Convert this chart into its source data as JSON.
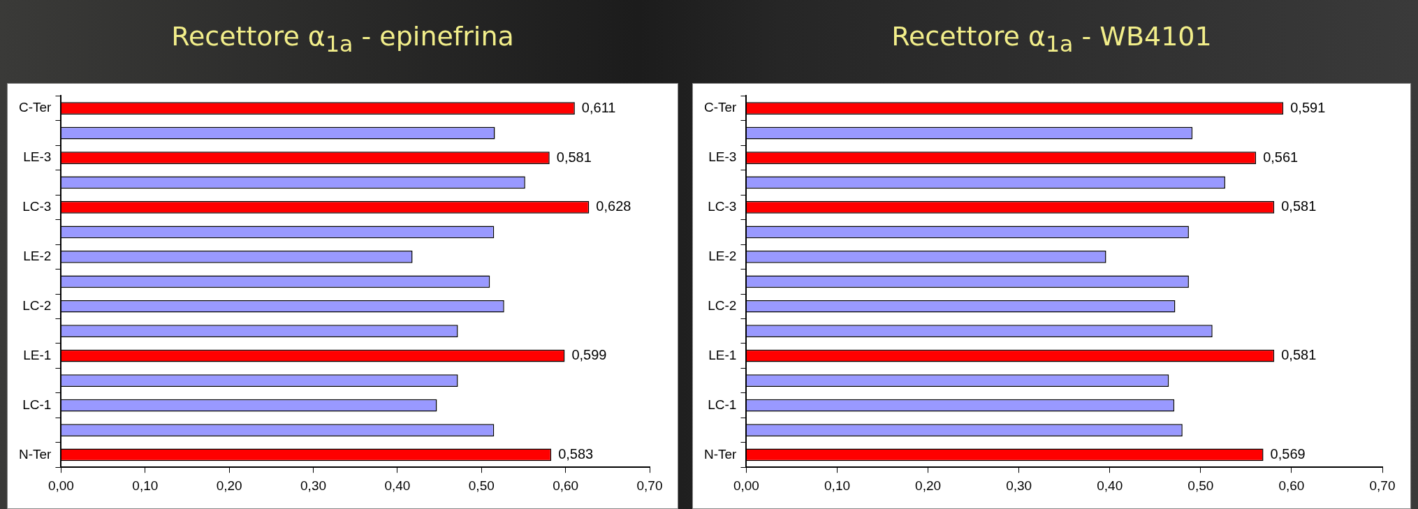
{
  "chart_data": [
    {
      "type": "bar",
      "orientation": "horizontal",
      "title": "Recettore α$_{1a}$ - epinefrina",
      "categories": [
        "C-Ter",
        null,
        "LE-3",
        null,
        "LC-3",
        null,
        "LE-2",
        null,
        "LC-2",
        null,
        "LE-1",
        null,
        "LC-1",
        null,
        "N-Ter"
      ],
      "values": [
        0.611,
        0.516,
        0.581,
        0.552,
        0.628,
        0.515,
        0.418,
        0.51,
        0.527,
        0.472,
        0.599,
        0.472,
        0.447,
        0.515,
        0.583
      ],
      "colors": [
        "#ff0000",
        "#9999ff",
        "#ff0000",
        "#9999ff",
        "#ff0000",
        "#9999ff",
        "#9999ff",
        "#9999ff",
        "#9999ff",
        "#9999ff",
        "#ff0000",
        "#9999ff",
        "#9999ff",
        "#9999ff",
        "#ff0000"
      ],
      "value_labels": [
        "0,611",
        null,
        "0,581",
        null,
        "0,628",
        null,
        null,
        null,
        null,
        null,
        "0,599",
        null,
        null,
        null,
        "0,583"
      ],
      "xlim": [
        0,
        0.7
      ],
      "xticks": [
        {
          "value": 0,
          "label": "0,00"
        },
        {
          "value": 0.1,
          "label": "0,10"
        },
        {
          "value": 0.2,
          "label": "0,20"
        },
        {
          "value": 0.3,
          "label": "0,30"
        },
        {
          "value": 0.4,
          "label": "0,40"
        },
        {
          "value": 0.5,
          "label": "0,50"
        },
        {
          "value": 0.6,
          "label": "0,60"
        },
        {
          "value": 0.7,
          "label": "0,70"
        }
      ]
    },
    {
      "type": "bar",
      "orientation": "horizontal",
      "title": "Recettore α$_{1a}$ - WB4101",
      "categories": [
        "C-Ter",
        null,
        "LE-3",
        null,
        "LC-3",
        null,
        "LE-2",
        null,
        "LC-2",
        null,
        "LE-1",
        null,
        "LC-1",
        null,
        "N-Ter"
      ],
      "values": [
        0.591,
        0.491,
        0.561,
        0.527,
        0.581,
        0.487,
        0.396,
        0.487,
        0.472,
        0.513,
        0.581,
        0.465,
        0.471,
        0.48,
        0.569
      ],
      "colors": [
        "#ff0000",
        "#9999ff",
        "#ff0000",
        "#9999ff",
        "#ff0000",
        "#9999ff",
        "#9999ff",
        "#9999ff",
        "#9999ff",
        "#9999ff",
        "#ff0000",
        "#9999ff",
        "#9999ff",
        "#9999ff",
        "#ff0000"
      ],
      "value_labels": [
        "0,591",
        null,
        "0,561",
        null,
        "0,581",
        null,
        null,
        null,
        null,
        null,
        "0,581",
        null,
        null,
        null,
        "0,569"
      ],
      "xlim": [
        0,
        0.7
      ],
      "xticks": [
        {
          "value": 0,
          "label": "0,00"
        },
        {
          "value": 0.1,
          "label": "0,10"
        },
        {
          "value": 0.2,
          "label": "0,20"
        },
        {
          "value": 0.3,
          "label": "0,30"
        },
        {
          "value": 0.4,
          "label": "0,40"
        },
        {
          "value": 0.5,
          "label": "0,50"
        },
        {
          "value": 0.6,
          "label": "0,60"
        },
        {
          "value": 0.7,
          "label": "0,70"
        }
      ]
    }
  ]
}
